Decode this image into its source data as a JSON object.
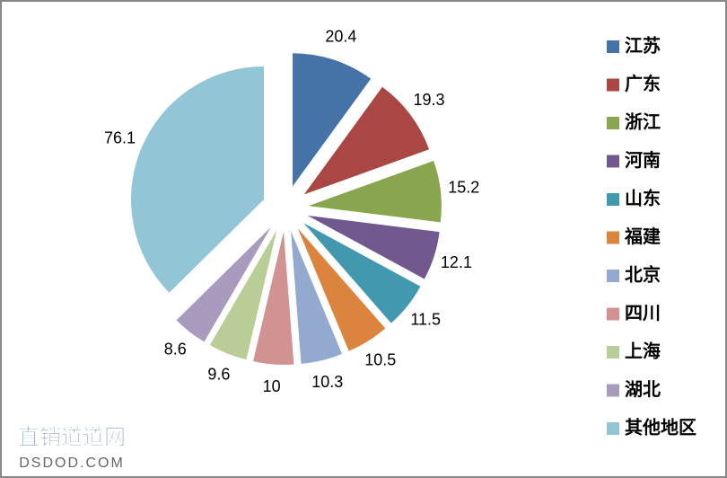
{
  "chart_data": {
    "type": "pie",
    "categories": [
      "江苏",
      "广东",
      "浙江",
      "河南",
      "山东",
      "福建",
      "北京",
      "四川",
      "上海",
      "湖北",
      "其他地区"
    ],
    "values": [
      20.4,
      19.3,
      15.2,
      12.1,
      11.5,
      10.5,
      10.3,
      10.0,
      9.6,
      8.6,
      76.1
    ],
    "colors": [
      "#4572a7",
      "#aa4643",
      "#89a54e",
      "#71588f",
      "#4198af",
      "#db843d",
      "#93a9cf",
      "#d19392",
      "#b9cd96",
      "#a99bbd",
      "#92c5d6"
    ],
    "legend": "right",
    "watermark": [
      "直销道道网",
      "DSDOD.COM"
    ]
  }
}
